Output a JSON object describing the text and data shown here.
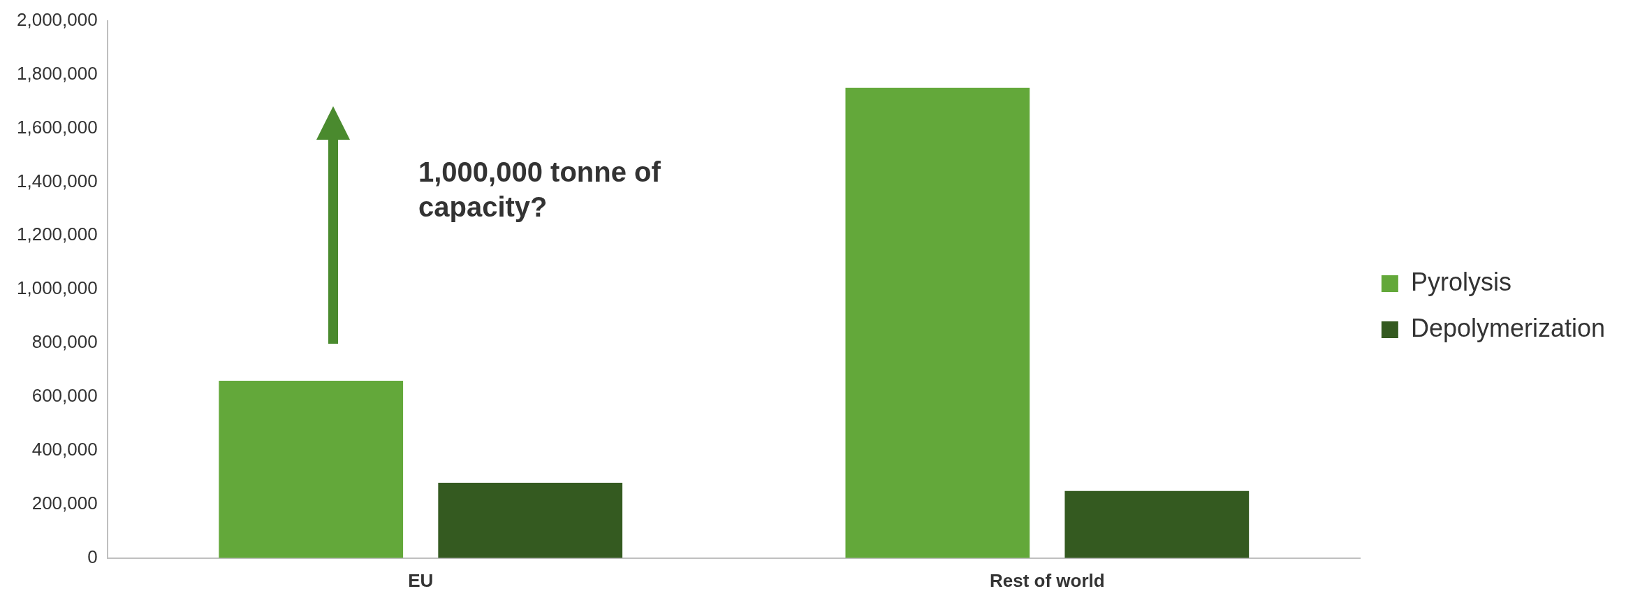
{
  "chart_data": {
    "type": "bar",
    "categories": [
      "EU",
      "Rest of world"
    ],
    "series": [
      {
        "name": "Pyrolysis",
        "color": "#63a83a",
        "values": [
          660000,
          1750000
        ]
      },
      {
        "name": "Depolymerization",
        "color": "#345a20",
        "values": [
          280000,
          250000
        ]
      }
    ],
    "ylim": [
      0,
      2000000
    ],
    "yticks": [
      0,
      {
        "value": 200000,
        "label": "200,000"
      },
      {
        "value": 400000,
        "label": "400,000"
      },
      {
        "value": 600000,
        "label": "600,000"
      },
      {
        "value": 800000,
        "label": "800,000"
      },
      {
        "value": 1000000,
        "label": "1,000,000"
      },
      {
        "value": 1200000,
        "label": "1,200,000"
      },
      {
        "value": 1400000,
        "label": "1,400,000"
      },
      {
        "value": 1600000,
        "label": "1,600,000"
      },
      {
        "value": 1800000,
        "label": "1,800,000"
      },
      {
        "value": 2000000,
        "label": "2,000,000"
      }
    ],
    "grid": false,
    "legend": "right",
    "annotations": [
      "1,000,000 tonne of capacity?"
    ]
  }
}
